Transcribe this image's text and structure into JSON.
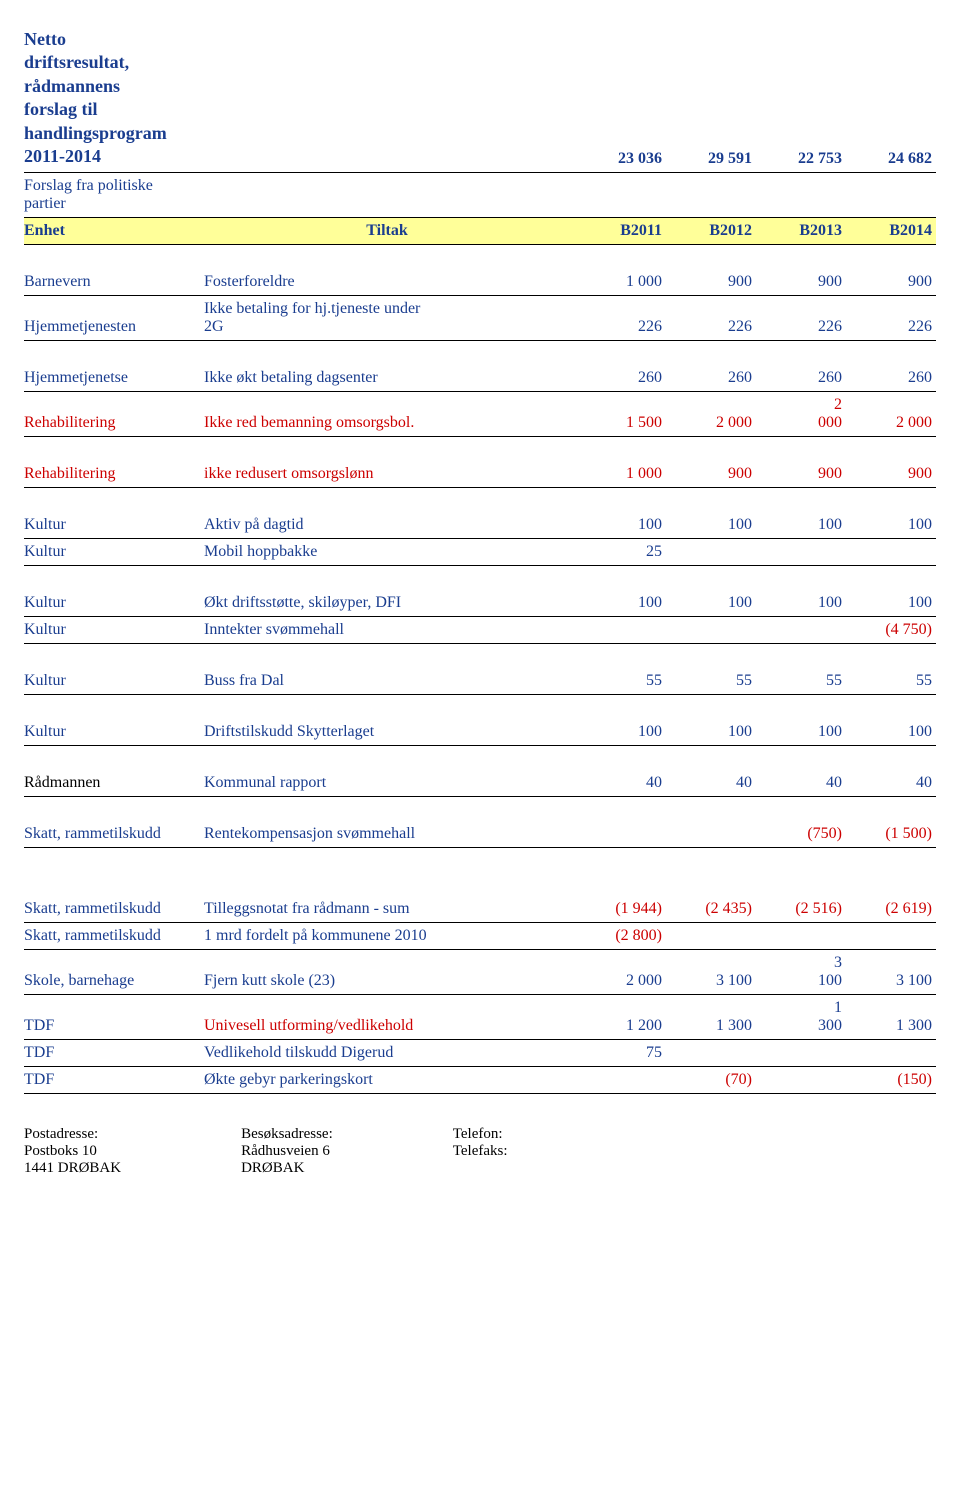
{
  "header": {
    "title_lines": [
      "Netto",
      "driftsresultat,",
      "rådmannens",
      "forslag til",
      "handlingsprogram",
      "2011-2014"
    ],
    "values": [
      "23 036",
      "29 591",
      "22 753",
      "24 682"
    ],
    "subtitle_lines": [
      "Forslag fra politiske",
      "partier"
    ]
  },
  "band": {
    "c1": "Enhet",
    "c2": "Tiltak",
    "cols": [
      "B2011",
      "B2012",
      "B2013",
      "B2014"
    ]
  },
  "rows": [
    {
      "label": "Barnevern",
      "desc": "Fosterforeldre",
      "v": [
        "1 000",
        "900",
        "900",
        "900"
      ],
      "color": "blue"
    },
    {
      "label": "Hjemmetjenesten",
      "desc_top": "Ikke betaling for hj.tjeneste under",
      "desc": "2G",
      "v": [
        "226",
        "226",
        "226",
        "226"
      ],
      "color": "blue"
    },
    {
      "gap": true
    },
    {
      "label": "Hjemmetjenetse",
      "desc": "Ikke økt betaling dagsenter",
      "v": [
        "260",
        "260",
        "260",
        "260"
      ],
      "color": "blue"
    },
    {
      "label": "Rehabilitering",
      "desc": "Ikke red bemanning omsorgsbol.",
      "v": [
        "1 500",
        "2 000",
        "",
        "2 000"
      ],
      "stack_col": 2,
      "stack_top": "2",
      "stack_bot": "000",
      "color": "red"
    },
    {
      "gap": true
    },
    {
      "label": "Rehabilitering",
      "desc": "ikke redusert omsorgslønn",
      "v": [
        "1 000",
        "900",
        "900",
        "900"
      ],
      "color": "red"
    },
    {
      "gap": true
    },
    {
      "label": "Kultur",
      "desc": "Aktiv på dagtid",
      "v": [
        "100",
        "100",
        "100",
        "100"
      ],
      "color": "blue"
    },
    {
      "label": "Kultur",
      "desc": "Mobil hoppbakke",
      "v": [
        "25",
        "",
        "",
        ""
      ],
      "color": "blue"
    },
    {
      "gap": true
    },
    {
      "label": "Kultur",
      "desc": "Økt driftsstøtte, skiløyper, DFI",
      "v": [
        "100",
        "100",
        "100",
        "100"
      ],
      "color": "blue"
    },
    {
      "label": "Kultur",
      "desc": "Inntekter svømmehall",
      "v": [
        "",
        "",
        "",
        "(4 750)"
      ],
      "color": "blue",
      "vcolor": [
        "",
        "",
        "",
        "red"
      ]
    },
    {
      "gap": true
    },
    {
      "label": "Kultur",
      "desc": "Buss fra Dal",
      "v": [
        "55",
        "55",
        "55",
        "55"
      ],
      "color": "blue"
    },
    {
      "gap": true
    },
    {
      "label": "Kultur",
      "desc": "Driftstilskudd Skytterlaget",
      "v": [
        "100",
        "100",
        "100",
        "100"
      ],
      "color": "blue"
    },
    {
      "gap": true
    },
    {
      "label": "Rådmannen",
      "desc": "Kommunal rapport",
      "v": [
        "40",
        "40",
        "40",
        "40"
      ],
      "label_color": "black",
      "color": "blue"
    },
    {
      "gap": true
    },
    {
      "label": "Skatt, rammetilskudd",
      "desc": "Rentekompensasjon svømmehall",
      "v": [
        "",
        "",
        "(750)",
        "(1 500)"
      ],
      "color": "blue",
      "vcolor": [
        "",
        "",
        "red",
        "red"
      ]
    },
    {
      "gap": true
    },
    {
      "gap": true
    },
    {
      "label": "Skatt, rammetilskudd",
      "desc": "Tilleggsnotat fra rådmann - sum",
      "v": [
        "(1 944)",
        "(2  435)",
        "(2  516)",
        "(2 619)"
      ],
      "color": "blue",
      "vcolor": [
        "red",
        "red",
        "red",
        "red"
      ]
    },
    {
      "label": "Skatt, rammetilskudd",
      "desc": "1 mrd fordelt på kommunene 2010",
      "v": [
        "(2 800)",
        "",
        "",
        ""
      ],
      "color": "blue",
      "vcolor": [
        "red",
        "",
        "",
        ""
      ]
    },
    {
      "label": "Skole, barnehage",
      "desc": "Fjern kutt skole (23)",
      "v": [
        "2 000",
        "3 100",
        "",
        "3 100"
      ],
      "stack_col": 2,
      "stack_top": "3",
      "stack_bot": "100",
      "color": "blue"
    },
    {
      "label": "TDF",
      "desc": "Univesell utforming/vedlikehold",
      "v": [
        "1 200",
        "1 300",
        "",
        "1 300"
      ],
      "stack_col": 2,
      "stack_top": "1",
      "stack_bot": "300",
      "color": "blue",
      "desc_color": "red"
    },
    {
      "label": "TDF",
      "desc": "Vedlikehold tilskudd Digerud",
      "v": [
        "75",
        "",
        "",
        ""
      ],
      "color": "blue"
    },
    {
      "label": "TDF",
      "desc": "Økte gebyr parkeringskort",
      "v": [
        "",
        "(70)",
        "",
        "(150)"
      ],
      "color": "blue",
      "vcolor": [
        "",
        "red",
        "",
        "red"
      ]
    }
  ],
  "footer": {
    "col1": [
      "Postadresse:",
      "Postboks 10",
      "1441 DRØBAK"
    ],
    "col2": [
      "Besøksadresse:",
      "Rådhusveien 6",
      "DRØBAK"
    ],
    "col3": [
      "",
      "Telefon:",
      "Telefaks:"
    ]
  }
}
